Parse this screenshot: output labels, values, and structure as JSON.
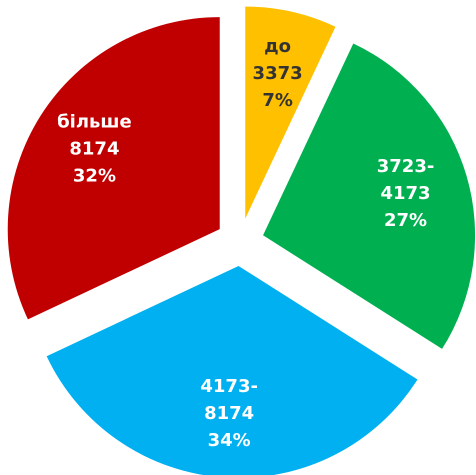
{
  "chart_data": {
    "type": "pie",
    "categories": [
      [
        "до",
        "3373"
      ],
      [
        "3723-",
        "4173"
      ],
      [
        "4173-",
        "8174"
      ],
      [
        "більше",
        "8174"
      ]
    ],
    "values": [
      7,
      27,
      34,
      32
    ],
    "value_labels": [
      "7%",
      "27%",
      "34%",
      "32%"
    ],
    "colors": [
      "#ffc000",
      "#00b050",
      "#00b0f0",
      "#c00000"
    ],
    "start_angle": 0,
    "direction": "clockwise",
    "exploded": true
  }
}
